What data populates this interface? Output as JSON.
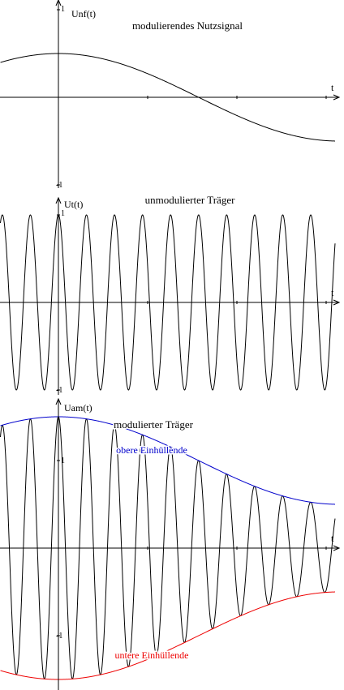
{
  "chart_data": [
    {
      "type": "line",
      "title": "modulierendes Nutzsignal",
      "ylabel": "Unf(t)",
      "xlabel": "t",
      "tick_labels": {
        "y_top": "1",
        "y_bottom": "-1"
      },
      "x_domain": [
        -0.65,
        3.1
      ],
      "ylim": [
        -1.0,
        1.0
      ],
      "grid": false,
      "series": [
        {
          "formula": "0.5*cos(x)",
          "line_color": "#000000"
        }
      ]
    },
    {
      "type": "line",
      "title": "unmodulierter Träger",
      "ylabel": "Ut(t)",
      "xlabel": "t",
      "tick_labels": {
        "y_top": "1",
        "y_bottom": "-1"
      },
      "x_domain": [
        -0.65,
        3.1
      ],
      "ylim": [
        -1.0,
        1.0
      ],
      "grid": false,
      "series": [
        {
          "formula": "cos(20*x)",
          "line_color": "#000000"
        }
      ]
    },
    {
      "type": "line",
      "title": "modulierter Träger",
      "ylabel": "Uam(t)",
      "xlabel": "t",
      "tick_labels": {
        "y_top": "1",
        "y_bottom": "-1"
      },
      "x_domain": [
        -0.65,
        3.1
      ],
      "ylim": [
        -1.5,
        1.5
      ],
      "grid": false,
      "series": [
        {
          "formula": "(1+0.5*cos(x))*cos(20*x)",
          "line_color": "#000000"
        },
        {
          "name": "obere Einhüllende",
          "formula": "1+0.5*cos(x)",
          "line_color": "#0000cc"
        },
        {
          "name": "untere Einhüllende",
          "formula": "-(1+0.5*cos(x))",
          "line_color": "#ee0000"
        }
      ]
    }
  ]
}
